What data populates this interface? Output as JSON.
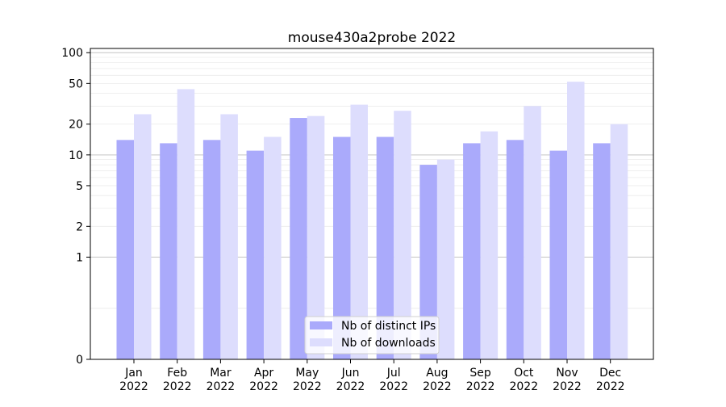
{
  "chart_data": {
    "type": "bar",
    "title": "mouse430a2probe 2022",
    "xlabel": "",
    "ylabel": "",
    "y_scale": "symlog",
    "ylim": [
      0,
      110
    ],
    "y_ticks": [
      0,
      1,
      2,
      5,
      10,
      20,
      50,
      100
    ],
    "y_tick_labels": [
      "0",
      "1",
      "2",
      "5",
      "10",
      "20",
      "50",
      "100"
    ],
    "grid": "horizontal",
    "legend_position": "bottom-center",
    "categories": [
      "Jan\n2022",
      "Feb\n2022",
      "Mar\n2022",
      "Apr\n2022",
      "May\n2022",
      "Jun\n2022",
      "Jul\n2022",
      "Aug\n2022",
      "Sep\n2022",
      "Oct\n2022",
      "Nov\n2022",
      "Dec\n2022"
    ],
    "series": [
      {
        "name": "Nb of distinct IPs",
        "color": "#aaaafb",
        "values": [
          14,
          13,
          14,
          11,
          23,
          15,
          15,
          8,
          13,
          14,
          11,
          13
        ]
      },
      {
        "name": "Nb of downloads",
        "color": "#ddddfd",
        "values": [
          25,
          44,
          25,
          15,
          24,
          31,
          27,
          9,
          17,
          30,
          52,
          20
        ]
      }
    ]
  }
}
